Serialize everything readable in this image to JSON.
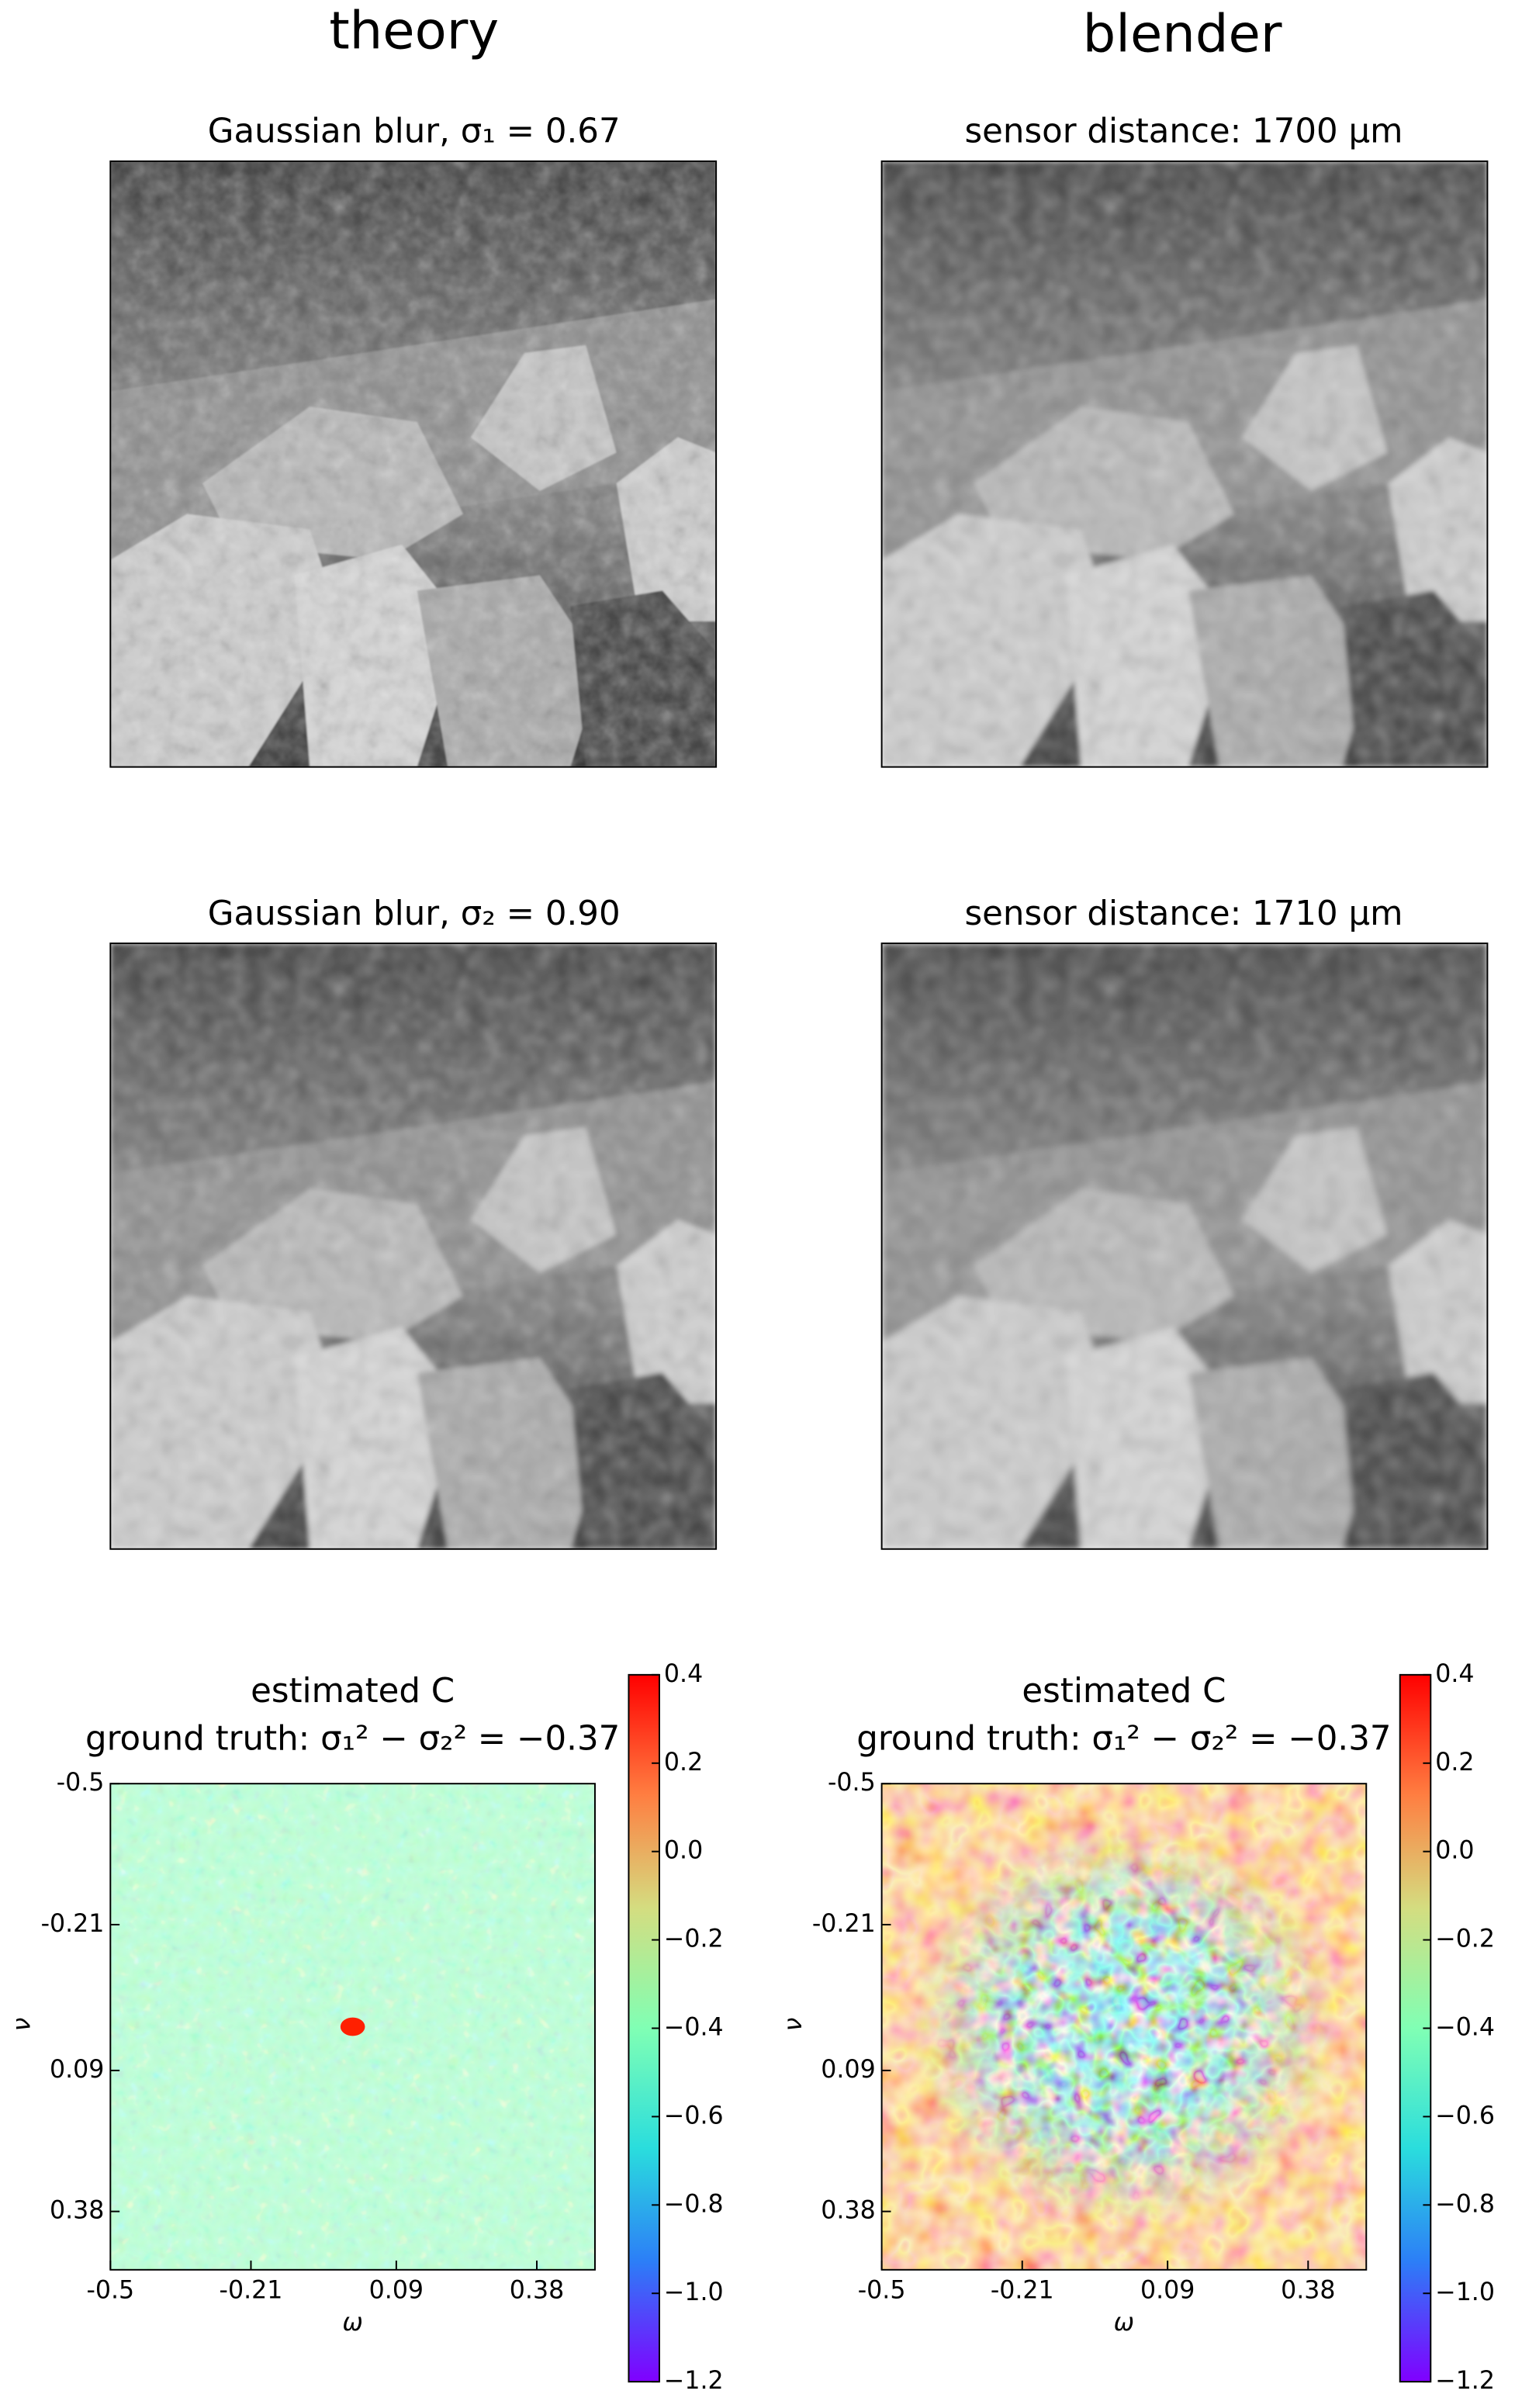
{
  "columns": [
    "theory",
    "blender"
  ],
  "panels": [
    {
      "title": "Gaussian blur, σ₁ = 0.67"
    },
    {
      "title": "sensor distance: 1700 μm"
    },
    {
      "title": "Gaussian blur, σ₂ = 0.90"
    },
    {
      "title": "sensor distance: 1710 μm"
    }
  ],
  "chart_data": [
    {
      "type": "heatmap",
      "title": "estimated C",
      "subtitle": "ground truth: σ₁² − σ₂² = −0.37",
      "x_label": "ω",
      "y_label": "ν",
      "xlim": [
        -0.5,
        0.5
      ],
      "ylim": [
        -0.5,
        0.5
      ],
      "y_inverted": true,
      "xticks": [
        -0.5,
        -0.21,
        0.09,
        0.38
      ],
      "yticks": [
        -0.5,
        -0.21,
        0.09,
        0.38
      ],
      "colormap": "rainbow",
      "clim": [
        -1.2,
        0.4
      ],
      "cticks": [
        {
          "value": -1.2,
          "label": "−1.2"
        },
        {
          "value": -1.0,
          "label": "−1.0"
        },
        {
          "value": -0.8,
          "label": "−0.8"
        },
        {
          "value": -0.6,
          "label": "−0.6"
        },
        {
          "value": -0.4,
          "label": "−0.4"
        },
        {
          "value": -0.2,
          "label": "−0.2"
        },
        {
          "value": 0,
          "label": "0.0"
        },
        0.2,
        0.4
      ]
    },
    {
      "type": "heatmap",
      "title": "estimated C",
      "subtitle": "ground truth: σ₁² − σ₂² = −0.37",
      "x_label": "ω",
      "y_label": "ν",
      "xlim": [
        -0.5,
        0.5
      ],
      "ylim": [
        -0.5,
        0.5
      ],
      "y_inverted": true,
      "xticks": [
        -0.5,
        -0.21,
        0.09,
        0.38
      ],
      "yticks": [
        -0.5,
        -0.21,
        0.09,
        0.38
      ],
      "colormap": "rainbow",
      "clim": [
        -1.2,
        0.4
      ],
      "cticks": [
        {
          "value": -1.2,
          "label": "−1.2"
        },
        {
          "value": -1.0,
          "label": "−1.0"
        },
        {
          "value": -0.8,
          "label": "−0.8"
        },
        {
          "value": -0.6,
          "label": "−0.6"
        },
        {
          "value": -0.4,
          "label": "−0.4"
        },
        {
          "value": -0.2,
          "label": "−0.2"
        },
        {
          "value": 0,
          "label": "0.0"
        },
        0.2,
        0.4
      ]
    }
  ]
}
